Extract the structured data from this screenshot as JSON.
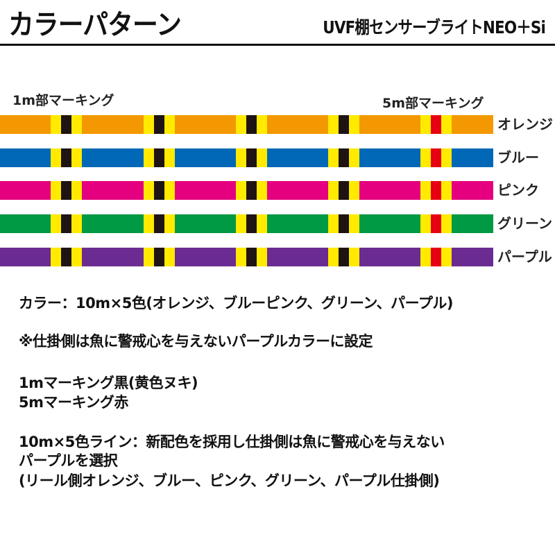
{
  "header": {
    "title": "カラーパターン",
    "subtitle": "UVF棚センサーブライトNEO＋Si"
  },
  "marking_labels": {
    "one_m": "1m部マーキング",
    "five_m": "5m部マーキング"
  },
  "colors": {
    "marker_yellow": "#ffea00",
    "marker_black": "#1e1414",
    "marker_red": "#e60012"
  },
  "lines": [
    {
      "label": "オレンジ",
      "color": "#f39800"
    },
    {
      "label": "ブルー",
      "color": "#0068b7"
    },
    {
      "label": "ピンク",
      "color": "#e4007f"
    },
    {
      "label": "グリーン",
      "color": "#009944"
    },
    {
      "label": "パープル",
      "color": "#6a2c91"
    }
  ],
  "markers": [
    "black",
    "black",
    "black",
    "black",
    "red"
  ],
  "description": {
    "line1": "カラー：10m×5色(オレンジ、ブルーピンク、グリーン、パープル)",
    "line2": "※仕掛側は魚に警戒心を与えないパープルカラーに設定",
    "line3": "1mマーキング黒(黄色ヌキ)",
    "line4": "5mマーキング赤",
    "line5": "10m×5色ライン：新配色を採用し仕掛側は魚に警戒心を与えない",
    "line6": "パープルを選択",
    "line7": "(リール側オレンジ、ブルー、ピンク、グリーン、パープル仕掛側)"
  }
}
